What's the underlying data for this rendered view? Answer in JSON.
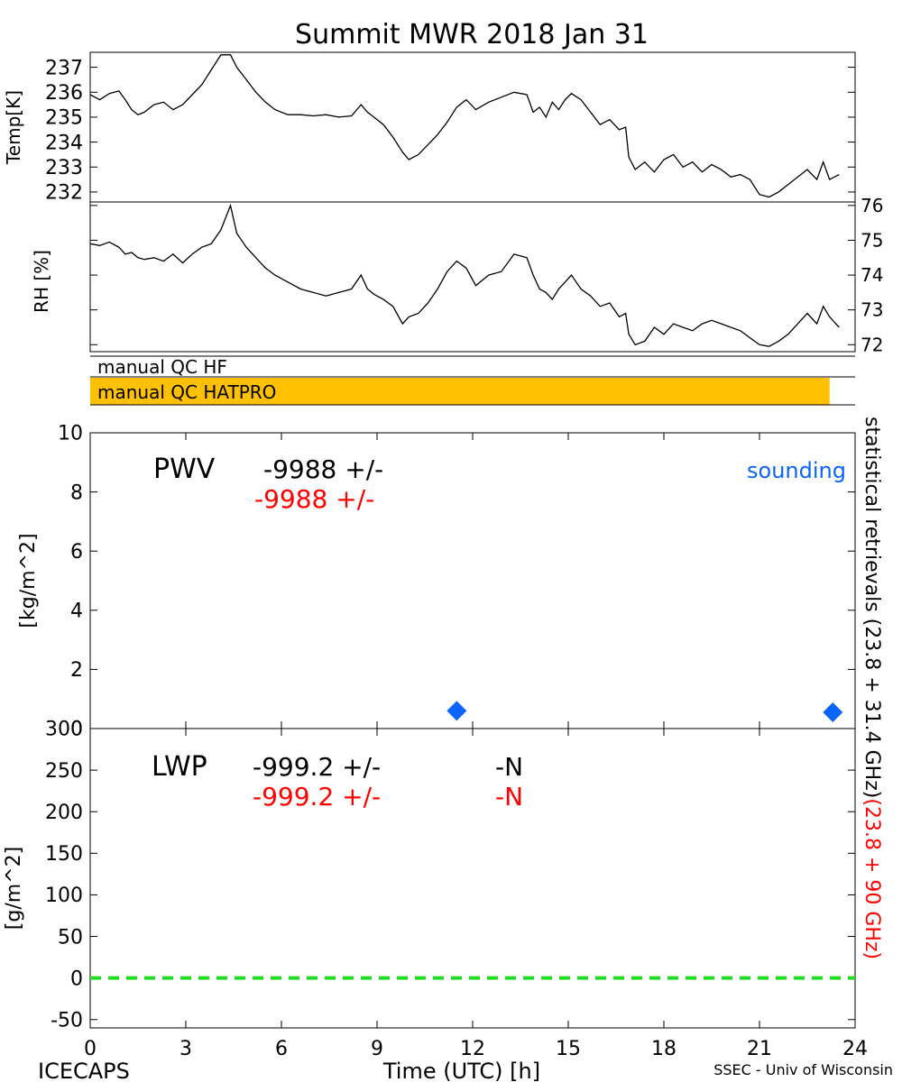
{
  "title": "Summit MWR 2018 Jan 31",
  "footer": {
    "left": "ICECAPS",
    "center": "Time (UTC) [h]",
    "right": "SSEC - Univ of Wisconsin"
  },
  "right_side": {
    "stat_label": "statistical retrievals (23.8 + 31.4 GHz)",
    "stat_label_red": "(23.8 + 90 GHz)"
  },
  "qc": {
    "hf_label": "manual QC HF",
    "hatpro_label": "manual QC HATPRO",
    "hatpro_color": "#ffc000",
    "hatpro_range_h": [
      0,
      23.2
    ]
  },
  "pwv_text": {
    "label": "PWV",
    "stat_value": "-9988 +/-",
    "phys_value": "-9988 +/-",
    "sounding_label": "sounding",
    "sounding_color": "#0a64ff",
    "phys_color": "#ff0000"
  },
  "lwp_text": {
    "label": "LWP",
    "stat_value": "-999.2 +/-",
    "stat_n": "-N",
    "phys_value": "-999.2 +/-",
    "phys_n": "-N",
    "zero_line_color": "#22dd22"
  },
  "chart_data": [
    {
      "type": "line",
      "panel": "temperature",
      "ylabel": "Temp[K]",
      "xlim": [
        0,
        24
      ],
      "ylim": [
        231.6,
        237.6
      ],
      "yticks": [
        232,
        233,
        234,
        235,
        236,
        237
      ],
      "x": [
        0,
        0.3,
        0.6,
        0.9,
        1.1,
        1.3,
        1.5,
        1.7,
        2.0,
        2.3,
        2.6,
        2.9,
        3.2,
        3.5,
        3.8,
        4.1,
        4.4,
        4.6,
        4.9,
        5.2,
        5.5,
        5.8,
        6.2,
        6.6,
        7.0,
        7.4,
        7.8,
        8.2,
        8.5,
        8.7,
        8.9,
        9.2,
        9.5,
        9.8,
        10.0,
        10.3,
        10.6,
        10.9,
        11.2,
        11.5,
        11.8,
        12.1,
        12.5,
        12.9,
        13.3,
        13.7,
        13.9,
        14.1,
        14.3,
        14.5,
        14.7,
        14.9,
        15.1,
        15.4,
        15.7,
        16.0,
        16.3,
        16.6,
        16.8,
        16.9,
        17.1,
        17.4,
        17.7,
        18.0,
        18.3,
        18.6,
        18.9,
        19.2,
        19.5,
        19.8,
        20.1,
        20.4,
        20.7,
        21.0,
        21.3,
        21.6,
        21.9,
        22.2,
        22.5,
        22.8,
        23.0,
        23.2,
        23.5
      ],
      "values": [
        235.9,
        235.7,
        235.95,
        236.05,
        235.7,
        235.3,
        235.1,
        235.2,
        235.5,
        235.6,
        235.3,
        235.5,
        235.9,
        236.3,
        236.9,
        237.5,
        237.5,
        237.0,
        236.5,
        236.0,
        235.6,
        235.3,
        235.1,
        235.1,
        235.05,
        235.1,
        235.0,
        235.05,
        235.5,
        235.2,
        235.0,
        234.7,
        234.2,
        233.6,
        233.3,
        233.5,
        233.9,
        234.3,
        234.8,
        235.4,
        235.7,
        235.3,
        235.6,
        235.8,
        236.0,
        235.9,
        235.2,
        235.4,
        235.0,
        235.6,
        235.3,
        235.7,
        235.95,
        235.7,
        235.2,
        234.7,
        234.9,
        234.5,
        234.6,
        233.4,
        232.9,
        233.2,
        232.8,
        233.3,
        233.5,
        233.0,
        233.2,
        232.8,
        233.1,
        232.9,
        232.6,
        232.7,
        232.5,
        231.9,
        231.8,
        232.0,
        232.3,
        232.6,
        232.9,
        232.5,
        233.2,
        232.5,
        232.7
      ],
      "color": "#000000"
    },
    {
      "type": "line",
      "panel": "relative-humidity",
      "ylabel": "RH [%]",
      "xlim": [
        0,
        24
      ],
      "ylim": [
        71.8,
        76.1
      ],
      "yticks": [
        72,
        73,
        74,
        75,
        76
      ],
      "x": [
        0,
        0.3,
        0.6,
        0.9,
        1.1,
        1.3,
        1.5,
        1.7,
        2.0,
        2.3,
        2.6,
        2.9,
        3.2,
        3.5,
        3.8,
        4.1,
        4.4,
        4.6,
        4.9,
        5.2,
        5.5,
        5.8,
        6.2,
        6.6,
        7.0,
        7.4,
        7.8,
        8.2,
        8.5,
        8.7,
        8.9,
        9.2,
        9.5,
        9.8,
        10.0,
        10.3,
        10.6,
        10.9,
        11.2,
        11.5,
        11.8,
        12.1,
        12.5,
        12.9,
        13.3,
        13.7,
        13.9,
        14.1,
        14.3,
        14.5,
        14.7,
        14.9,
        15.1,
        15.4,
        15.7,
        16.0,
        16.3,
        16.6,
        16.8,
        16.9,
        17.1,
        17.4,
        17.7,
        18.0,
        18.3,
        18.6,
        18.9,
        19.2,
        19.5,
        19.8,
        20.1,
        20.4,
        20.7,
        21.0,
        21.3,
        21.6,
        21.9,
        22.2,
        22.5,
        22.8,
        23.0,
        23.2,
        23.5
      ],
      "values": [
        74.9,
        74.85,
        74.95,
        74.8,
        74.6,
        74.65,
        74.5,
        74.45,
        74.5,
        74.4,
        74.6,
        74.35,
        74.6,
        74.8,
        74.9,
        75.3,
        76.0,
        75.2,
        74.8,
        74.5,
        74.2,
        74.0,
        73.8,
        73.6,
        73.5,
        73.4,
        73.5,
        73.6,
        74.0,
        73.6,
        73.45,
        73.3,
        73.1,
        72.6,
        72.8,
        72.9,
        73.2,
        73.6,
        74.1,
        74.4,
        74.2,
        73.7,
        74.0,
        74.1,
        74.6,
        74.5,
        74.0,
        73.6,
        73.5,
        73.3,
        73.6,
        73.8,
        74.0,
        73.6,
        73.4,
        73.1,
        73.2,
        72.8,
        72.9,
        72.3,
        72.0,
        72.1,
        72.5,
        72.3,
        72.6,
        72.5,
        72.4,
        72.6,
        72.7,
        72.6,
        72.5,
        72.4,
        72.2,
        72.0,
        71.95,
        72.1,
        72.3,
        72.6,
        72.9,
        72.6,
        73.1,
        72.8,
        72.5
      ],
      "color": "#000000"
    },
    {
      "type": "scatter",
      "panel": "pwv",
      "ylabel": "[kg/m^2]",
      "xlim": [
        0,
        24
      ],
      "ylim": [
        0,
        10
      ],
      "yticks": [
        0,
        2,
        4,
        6,
        8,
        10
      ],
      "series": [
        {
          "name": "sounding",
          "x": [
            11.5,
            23.3
          ],
          "values": [
            0.6,
            0.55
          ],
          "color": "#0a64ff"
        }
      ]
    },
    {
      "type": "line",
      "panel": "lwp",
      "ylabel": "[g/m^2]",
      "xlabel": "Time (UTC) [h]",
      "xlim": [
        0,
        24
      ],
      "ylim": [
        -60,
        300
      ],
      "yticks": [
        -50,
        0,
        50,
        100,
        150,
        200,
        250,
        300
      ],
      "xticks": [
        0,
        3,
        6,
        9,
        12,
        15,
        18,
        21,
        24
      ],
      "series": [
        {
          "x": [
            0,
            24
          ],
          "values": [
            0,
            0
          ],
          "color": "#22dd22",
          "style": "dashed"
        }
      ]
    }
  ]
}
